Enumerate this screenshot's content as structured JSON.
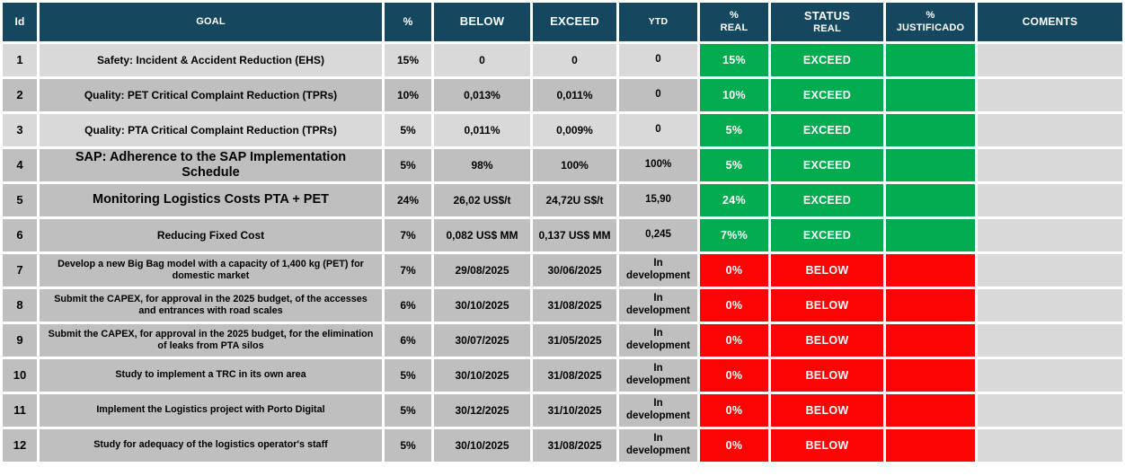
{
  "header": {
    "columns": [
      {
        "key": "id",
        "label": "Id"
      },
      {
        "key": "goal",
        "label": "GOAL"
      },
      {
        "key": "pct",
        "label": "%"
      },
      {
        "key": "below",
        "label": "BELOW"
      },
      {
        "key": "exceed",
        "label": "EXCEED"
      },
      {
        "key": "ytd",
        "label": "YTD"
      },
      {
        "key": "pct_real",
        "label": "%",
        "label2": "REAL"
      },
      {
        "key": "status_real",
        "label": "STATUS",
        "label2": "REAL"
      },
      {
        "key": "pct_justificado",
        "label": "%",
        "label2": "JUSTIFICADO"
      },
      {
        "key": "comments",
        "label": "COMENTS"
      }
    ]
  },
  "rows": [
    {
      "id": "1",
      "goal": "Safety: Incident & Accident Reduction (EHS)",
      "pct": "15%",
      "below": "0",
      "exceed": "0",
      "ytd": "0",
      "pct_real": "15%",
      "status_real": "EXCEED",
      "pct_justificado": "",
      "comments": ""
    },
    {
      "id": "2",
      "goal": "Quality: PET Critical Complaint Reduction (TPRs)",
      "pct": "10%",
      "below": "0,013%",
      "exceed": "0,011%",
      "ytd": "0",
      "pct_real": "10%",
      "status_real": "EXCEED",
      "pct_justificado": "",
      "comments": ""
    },
    {
      "id": "3",
      "goal": "Quality: PTA Critical Complaint Reduction (TPRs)",
      "pct": "5%",
      "below": "0,011%",
      "exceed": "0,009%",
      "ytd": "0",
      "pct_real": "5%",
      "status_real": "EXCEED",
      "pct_justificado": "",
      "comments": ""
    },
    {
      "id": "4",
      "goal": "SAP: Adherence to the SAP Implementation Schedule",
      "pct": "5%",
      "below": "98%",
      "exceed": "100%",
      "ytd": "100%",
      "pct_real": "5%",
      "status_real": "EXCEED",
      "pct_justificado": "",
      "comments": ""
    },
    {
      "id": "5",
      "goal": "Monitoring Logistics Costs PTA + PET",
      "pct": "24%",
      "below": "26,02 US$/t",
      "exceed": "24,72U S$/t",
      "ytd": "15,90",
      "pct_real": "24%",
      "status_real": "EXCEED",
      "pct_justificado": "",
      "comments": ""
    },
    {
      "id": "6",
      "goal": "Reducing Fixed Cost",
      "pct": "7%",
      "below": "0,082 US$ MM",
      "exceed": "0,137 US$ MM",
      "ytd": "0,245",
      "pct_real": "7%%",
      "status_real": "EXCEED",
      "pct_justificado": "",
      "comments": ""
    },
    {
      "id": "7",
      "goal": "Develop a new Big Bag model with a capacity of 1,400 kg (PET) for domestic market",
      "pct": "7%",
      "below": "29/08/2025",
      "exceed": "30/06/2025",
      "ytd": "In development",
      "pct_real": "0%",
      "status_real": "BELOW",
      "pct_justificado": "",
      "comments": ""
    },
    {
      "id": "8",
      "goal": "Submit the CAPEX, for approval in the 2025 budget, of the accesses and entrances with road scales",
      "pct": "6%",
      "below": "30/10/2025",
      "exceed": "31/08/2025",
      "ytd": "In development",
      "pct_real": "0%",
      "status_real": "BELOW",
      "pct_justificado": "",
      "comments": ""
    },
    {
      "id": "9",
      "goal": "Submit the CAPEX, for approval in the 2025 budget, for the elimination of leaks from PTA silos",
      "pct": "6%",
      "below": "30/07/2025",
      "exceed": "31/05/2025",
      "ytd": "In development",
      "pct_real": "0%",
      "status_real": "BELOW",
      "pct_justificado": "",
      "comments": ""
    },
    {
      "id": "10",
      "goal": "Study to implement a TRC in its own area",
      "pct": "5%",
      "below": "30/10/2025",
      "exceed": "31/08/2025",
      "ytd": "In development",
      "pct_real": "0%",
      "status_real": "BELOW",
      "pct_justificado": "",
      "comments": ""
    },
    {
      "id": "11",
      "goal": "Implement the Logistics project with Porto Digital",
      "pct": "5%",
      "below": "30/12/2025",
      "exceed": "31/10/2025",
      "ytd": "In development",
      "pct_real": "0%",
      "status_real": "BELOW",
      "pct_justificado": "",
      "comments": ""
    },
    {
      "id": "12",
      "goal": "Study for adequacy of the logistics operator's staff",
      "pct": "5%",
      "below": "30/10/2025",
      "exceed": "31/08/2025",
      "ytd": "In development",
      "pct_real": "0%",
      "status_real": "BELOW",
      "pct_justificado": "",
      "comments": ""
    }
  ],
  "colors": {
    "header_bg": "#15485E",
    "green": "#00AC4F",
    "red": "#FD0404",
    "row_light": "#D9D9D9",
    "row_dark": "#BFBFBF",
    "comments_bg": "#D9D9D9",
    "text_dark": "#000000",
    "text_light": "#FFFFFF"
  }
}
